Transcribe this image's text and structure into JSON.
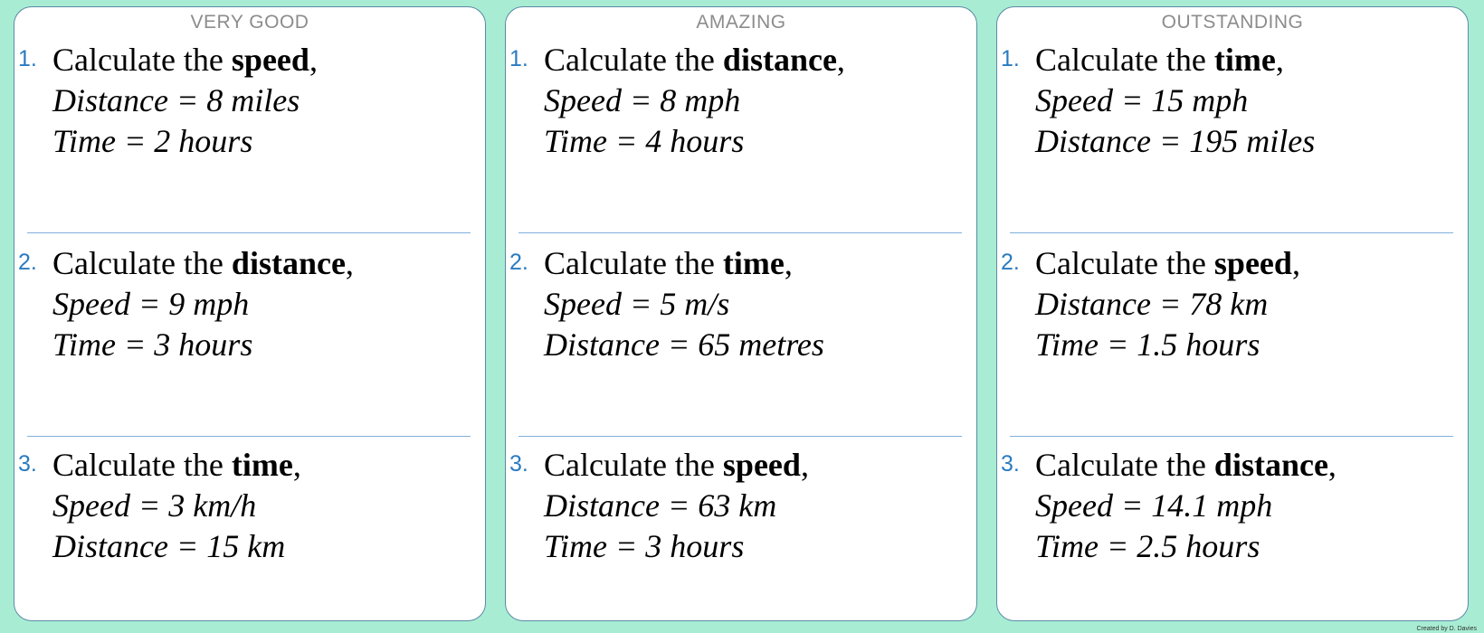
{
  "cards": [
    {
      "title": "VERY GOOD",
      "questions": [
        {
          "number": "1.",
          "prefix": "Calculate the ",
          "target": "speed",
          "suffix": ",",
          "line2": "Distance = 8 miles",
          "line3": "Time = 2 hours"
        },
        {
          "number": "2.",
          "prefix": "Calculate the ",
          "target": "distance",
          "suffix": ",",
          "line2": "Speed = 9 mph",
          "line3": "Time = 3 hours"
        },
        {
          "number": "3.",
          "prefix": "Calculate the ",
          "target": "time",
          "suffix": ",",
          "line2": "Speed = 3 km/h",
          "line3": "Distance = 15 km"
        }
      ]
    },
    {
      "title": "AMAZING",
      "questions": [
        {
          "number": "1.",
          "prefix": "Calculate the ",
          "target": "distance",
          "suffix": ",",
          "line2": "Speed = 8 mph",
          "line3": "Time = 4 hours"
        },
        {
          "number": "2.",
          "prefix": "Calculate the ",
          "target": "time",
          "suffix": ",",
          "line2": "Speed = 5 m/s",
          "line3": "Distance = 65 metres"
        },
        {
          "number": "3.",
          "prefix": "Calculate the ",
          "target": "speed",
          "suffix": ",",
          "line2": "Distance = 63 km",
          "line3": "Time = 3 hours"
        }
      ]
    },
    {
      "title": "OUTSTANDING",
      "questions": [
        {
          "number": "1.",
          "prefix": "Calculate the ",
          "target": "time",
          "suffix": ",",
          "line2": "Speed = 15 mph",
          "line3": "Distance = 195 miles"
        },
        {
          "number": "2.",
          "prefix": "Calculate the ",
          "target": "speed",
          "suffix": ",",
          "line2": "Distance = 78 km",
          "line3": "Time = 1.5 hours"
        },
        {
          "number": "3.",
          "prefix": "Calculate the ",
          "target": "distance",
          "suffix": ",",
          "line2": "Speed = 14.1 mph",
          "line3": "Time = 2.5 hours"
        }
      ]
    }
  ],
  "credit": "Created by D. Davies",
  "colors": {
    "background": "#a8edd3",
    "card": "#ffffff",
    "card_border": "#5b8aa6",
    "number": "#2a7bc0",
    "divider": "#7fb0dc",
    "title": "#8c8c8c"
  }
}
